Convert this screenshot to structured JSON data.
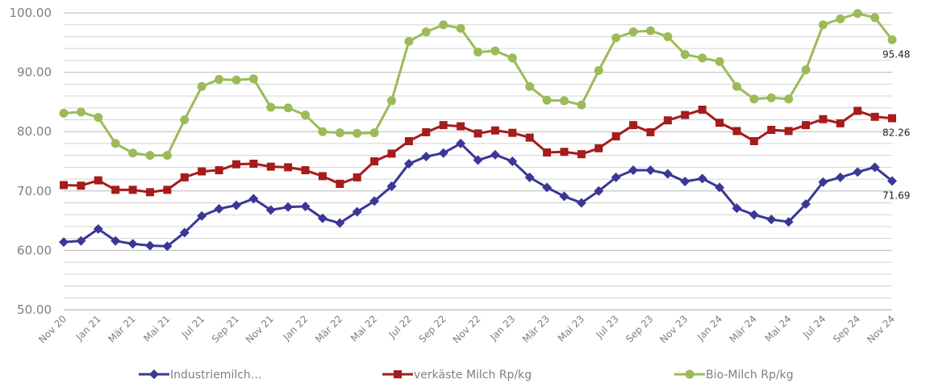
{
  "chart_data": {
    "type": "line",
    "title": "",
    "xlabel": "",
    "ylabel": "",
    "ylim": [
      50,
      100
    ],
    "yticks": [
      "50.00",
      "60.00",
      "70.00",
      "80.00",
      "90.00",
      "100.00"
    ],
    "grid": true,
    "legend_position": "bottom",
    "x": [
      "Nov 20",
      "Dez 20",
      "Jan 21",
      "Feb 21",
      "Mär 21",
      "Apr 21",
      "Mai 21",
      "Jun 21",
      "Jul 21",
      "Aug 21",
      "Sep 21",
      "Okt 21",
      "Nov 21",
      "Dez 21",
      "Jan 22",
      "Feb 22",
      "Mär 22",
      "Apr 22",
      "Mai 22",
      "Jun 22",
      "Jul 22",
      "Aug 22",
      "Sep 22",
      "Okt 22",
      "Nov 22",
      "Dez 22",
      "Jan 23",
      "Feb 23",
      "Mär 23",
      "Apr 23",
      "Mai 23",
      "Jun 23",
      "Jul 23",
      "Aug 23",
      "Sep 23",
      "Okt 23",
      "Nov 23",
      "Dez 23",
      "Jan 24",
      "Feb 24",
      "Mär 24",
      "Apr 24",
      "Mai 24",
      "Jun 24",
      "Jul 24",
      "Aug 24",
      "Sep 24",
      "Okt 24",
      "Nov 24"
    ],
    "xtick_labels": [
      "Nov 20",
      "Jan 21",
      "Mär 21",
      "Mai 21",
      "Jul 21",
      "Sep 21",
      "Nov 21",
      "Jan 22",
      "Mär 22",
      "Mai 22",
      "Jul 22",
      "Sep 22",
      "Nov 22",
      "Jan 23",
      "Mär 23",
      "Mai 23",
      "Jul 23",
      "Sep 23",
      "Nov 23",
      "Jan 24",
      "Mär 24",
      "Mai 24",
      "Jul 24",
      "Sep 24",
      "Nov 24"
    ],
    "series": [
      {
        "name": "Industriemilch…",
        "color": "#3b3795",
        "marker": "diamond",
        "end_label": "71.69",
        "values": [
          61.4,
          61.6,
          63.6,
          61.6,
          61.1,
          60.8,
          60.7,
          63.0,
          65.8,
          67.0,
          67.6,
          68.7,
          66.8,
          67.3,
          67.4,
          65.4,
          64.6,
          66.5,
          68.3,
          70.8,
          74.6,
          75.8,
          76.4,
          78.0,
          75.2,
          76.1,
          75.0,
          72.3,
          70.6,
          69.1,
          68.0,
          70.0,
          72.3,
          73.5,
          73.5,
          72.9,
          71.6,
          72.1,
          70.6,
          67.1,
          66.0,
          65.2,
          64.8,
          67.8,
          71.5,
          72.3,
          73.2,
          74.0,
          71.69
        ]
      },
      {
        "name": "verkäste Milch Rp/kg",
        "color": "#a51c1c",
        "marker": "square",
        "end_label": "82.26",
        "values": [
          71.0,
          70.9,
          71.8,
          70.2,
          70.2,
          69.8,
          70.2,
          72.3,
          73.3,
          73.5,
          74.5,
          74.6,
          74.1,
          74.0,
          73.5,
          72.5,
          71.2,
          72.3,
          75.0,
          76.3,
          78.4,
          79.9,
          81.1,
          80.9,
          79.7,
          80.2,
          79.8,
          79.0,
          76.5,
          76.6,
          76.2,
          77.2,
          79.2,
          81.1,
          79.9,
          81.9,
          82.8,
          83.7,
          81.5,
          80.1,
          78.4,
          80.3,
          80.1,
          81.1,
          82.1,
          81.4,
          83.5,
          82.5,
          82.26
        ]
      },
      {
        "name": "Bio-Milch Rp/kg",
        "color": "#9bbb59",
        "marker": "circle",
        "end_label": "95.48",
        "values": [
          83.1,
          83.3,
          82.4,
          78.0,
          76.4,
          76.0,
          76.0,
          82.0,
          87.6,
          88.8,
          88.7,
          88.9,
          84.1,
          84.0,
          82.8,
          80.0,
          79.8,
          79.7,
          79.8,
          85.2,
          95.2,
          96.8,
          98.0,
          97.4,
          93.4,
          93.6,
          92.4,
          87.6,
          85.3,
          85.2,
          84.5,
          90.3,
          95.8,
          96.8,
          97.0,
          96.0,
          93.0,
          92.4,
          91.8,
          87.6,
          85.5,
          85.7,
          85.5,
          90.4,
          98.0,
          99.0,
          99.9,
          99.2,
          95.48
        ]
      }
    ]
  }
}
